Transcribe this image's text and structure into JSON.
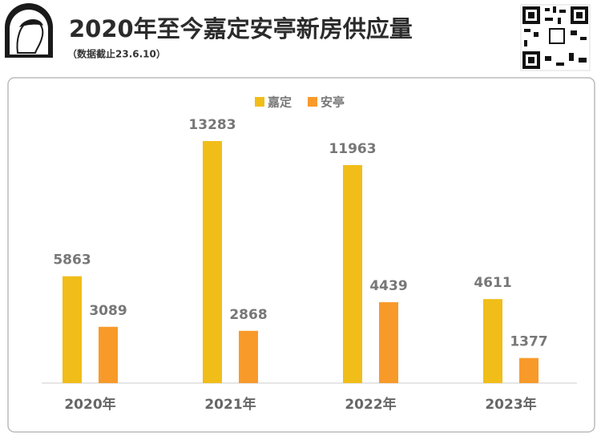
{
  "chart_data": {
    "type": "bar",
    "title": "2020年至今嘉定安亭新房供应量",
    "subtitle": "（数据截止23.6.10）",
    "categories": [
      "2020年",
      "2021年",
      "2022年",
      "2023年"
    ],
    "series": [
      {
        "name": "嘉定",
        "color": "#f1bd18",
        "values": [
          5863,
          13283,
          11963,
          4611
        ]
      },
      {
        "name": "安亭",
        "color": "#f89a2a",
        "values": [
          3089,
          2868,
          4439,
          1377
        ]
      }
    ],
    "legend": "top"
  }
}
